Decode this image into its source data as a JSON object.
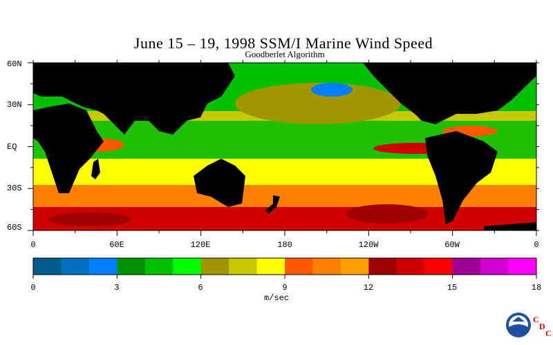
{
  "header": {
    "title": "June 15 – 19, 1998 SSM/I Marine Wind Speed",
    "subtitle": "Goodberlet Algorithm"
  },
  "map": {
    "lat_labels": [
      "60N",
      "30N",
      "EQ",
      "30S",
      "60S"
    ],
    "lon_labels": [
      "0",
      "60E",
      "120E",
      "180",
      "120W",
      "60W",
      "0"
    ],
    "land_color": "#000000"
  },
  "colorbar": {
    "tick_labels": [
      "0",
      "3",
      "6",
      "9",
      "12",
      "15",
      "18"
    ],
    "units": "m/sec",
    "colors": [
      "#005a8c",
      "#0070c0",
      "#0080ff",
      "#009000",
      "#00c000",
      "#00ff00",
      "#a09600",
      "#c8c800",
      "#ffff00",
      "#ff5a00",
      "#ff7f00",
      "#ffa000",
      "#a00000",
      "#d00000",
      "#ff0000",
      "#a00096",
      "#d200d2",
      "#ff00ff"
    ]
  },
  "logo": {
    "letters": [
      "C",
      "D",
      "C"
    ]
  }
}
